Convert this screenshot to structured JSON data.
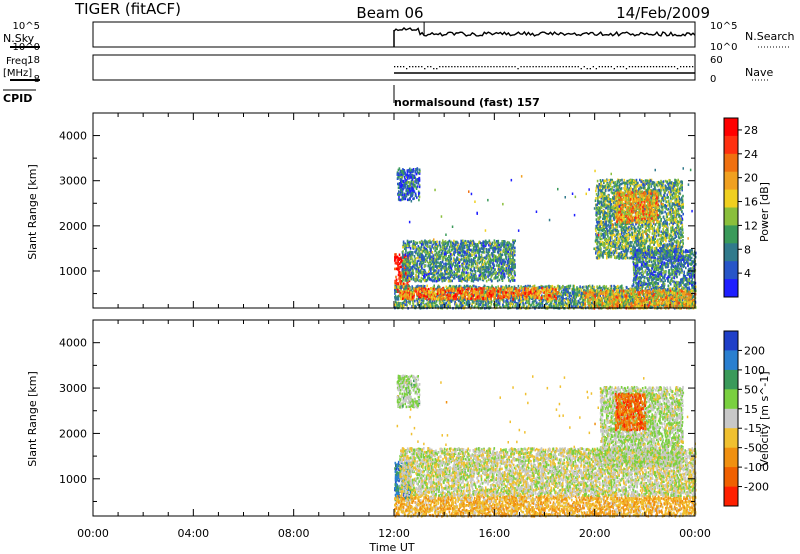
{
  "header": {
    "radar": "TIGER (fitACF)",
    "beam": "Beam 06",
    "date": "14/Feb/2009"
  },
  "noise_panel": {
    "left_label": "N.Sky",
    "right_label": "N.Search",
    "left_ticks": [
      "10^5",
      "10^0"
    ],
    "right_ticks": [
      "10^5",
      "10^0"
    ]
  },
  "freq_panel": {
    "left_label": "Freq.",
    "left_unit": "[MHz]",
    "right_label": "Nave",
    "left_ticks": [
      "18",
      "8"
    ],
    "right_ticks": [
      "60",
      "0"
    ]
  },
  "cpid": {
    "label": "CPID",
    "program": "normalsound (fast) 157",
    "start_time": "12:00"
  },
  "time_axis": {
    "xlabel": "Time UT",
    "ticks": [
      "00:00",
      "04:00",
      "08:00",
      "12:00",
      "16:00",
      "20:00",
      "00:00"
    ],
    "range_hours": [
      0,
      24
    ]
  },
  "chart_data": [
    {
      "type": "heatmap",
      "title": "",
      "ylabel": "Slant Range [km]",
      "yticks": [
        1000,
        2000,
        3000,
        4000
      ],
      "ylim": [
        180,
        4500
      ],
      "xlim_hours": [
        0,
        24
      ],
      "colorbar": {
        "label": "Power [dB]",
        "ticks": [
          4,
          8,
          12,
          16,
          20,
          24,
          28
        ],
        "range": [
          0,
          30
        ],
        "colors": [
          "#1f1fff",
          "#2855c8",
          "#317a8c",
          "#3a9a5a",
          "#8abf3c",
          "#f0d020",
          "#f0a020",
          "#f07010",
          "#ff3010",
          "#ff0000"
        ]
      },
      "echo_regions": [
        {
          "t0": 12.0,
          "t1": 12.6,
          "r0": 550,
          "r1": 1400,
          "level": 27
        },
        {
          "t0": 12.0,
          "t1": 24.0,
          "r0": 200,
          "r1": 700,
          "level": 10
        },
        {
          "t0": 12.2,
          "t1": 18.5,
          "r0": 400,
          "r1": 650,
          "level": 22
        },
        {
          "t0": 12.3,
          "t1": 16.8,
          "r0": 800,
          "r1": 1700,
          "level": 9
        },
        {
          "t0": 12.1,
          "t1": 13.0,
          "r0": 2600,
          "r1": 3300,
          "level": 6
        },
        {
          "t0": 20.0,
          "t1": 23.5,
          "r0": 1300,
          "r1": 3050,
          "level": 11
        },
        {
          "t0": 20.8,
          "t1": 22.5,
          "r0": 2100,
          "r1": 2800,
          "level": 19
        },
        {
          "t0": 21.5,
          "t1": 24.0,
          "r0": 700,
          "r1": 1500,
          "level": 8
        },
        {
          "t0": 19.5,
          "t1": 24.0,
          "r0": 200,
          "r1": 600,
          "level": 18
        }
      ]
    },
    {
      "type": "heatmap",
      "title": "",
      "ylabel": "Slant Range [km]",
      "yticks": [
        1000,
        2000,
        3000,
        4000
      ],
      "ylim": [
        180,
        4500
      ],
      "xlim_hours": [
        0,
        24
      ],
      "colorbar": {
        "label": "Velocity [m s^-1]",
        "ticks": [
          200,
          100,
          50,
          15,
          -15,
          -50,
          -100,
          -200
        ],
        "range": [
          -250,
          250
        ],
        "colors": [
          "#1f3fc8",
          "#2a7fd0",
          "#3a9a5a",
          "#7ad040",
          "#c8c8c8",
          "#f0c030",
          "#f09010",
          "#f06000",
          "#ff2000"
        ]
      },
      "echo_regions": [
        {
          "t0": 12.0,
          "t1": 12.7,
          "r0": 550,
          "r1": 1400,
          "level": 150
        },
        {
          "t0": 12.0,
          "t1": 24.0,
          "r0": 200,
          "r1": 650,
          "level": -70
        },
        {
          "t0": 12.2,
          "t1": 24.0,
          "r0": 650,
          "r1": 1700,
          "level": 0
        },
        {
          "t0": 12.1,
          "t1": 13.0,
          "r0": 2600,
          "r1": 3300,
          "level": 30
        },
        {
          "t0": 20.2,
          "t1": 23.5,
          "r0": 1300,
          "r1": 3050,
          "level": 20
        },
        {
          "t0": 20.8,
          "t1": 22.0,
          "r0": 2100,
          "r1": 2900,
          "level": -160
        }
      ]
    }
  ]
}
